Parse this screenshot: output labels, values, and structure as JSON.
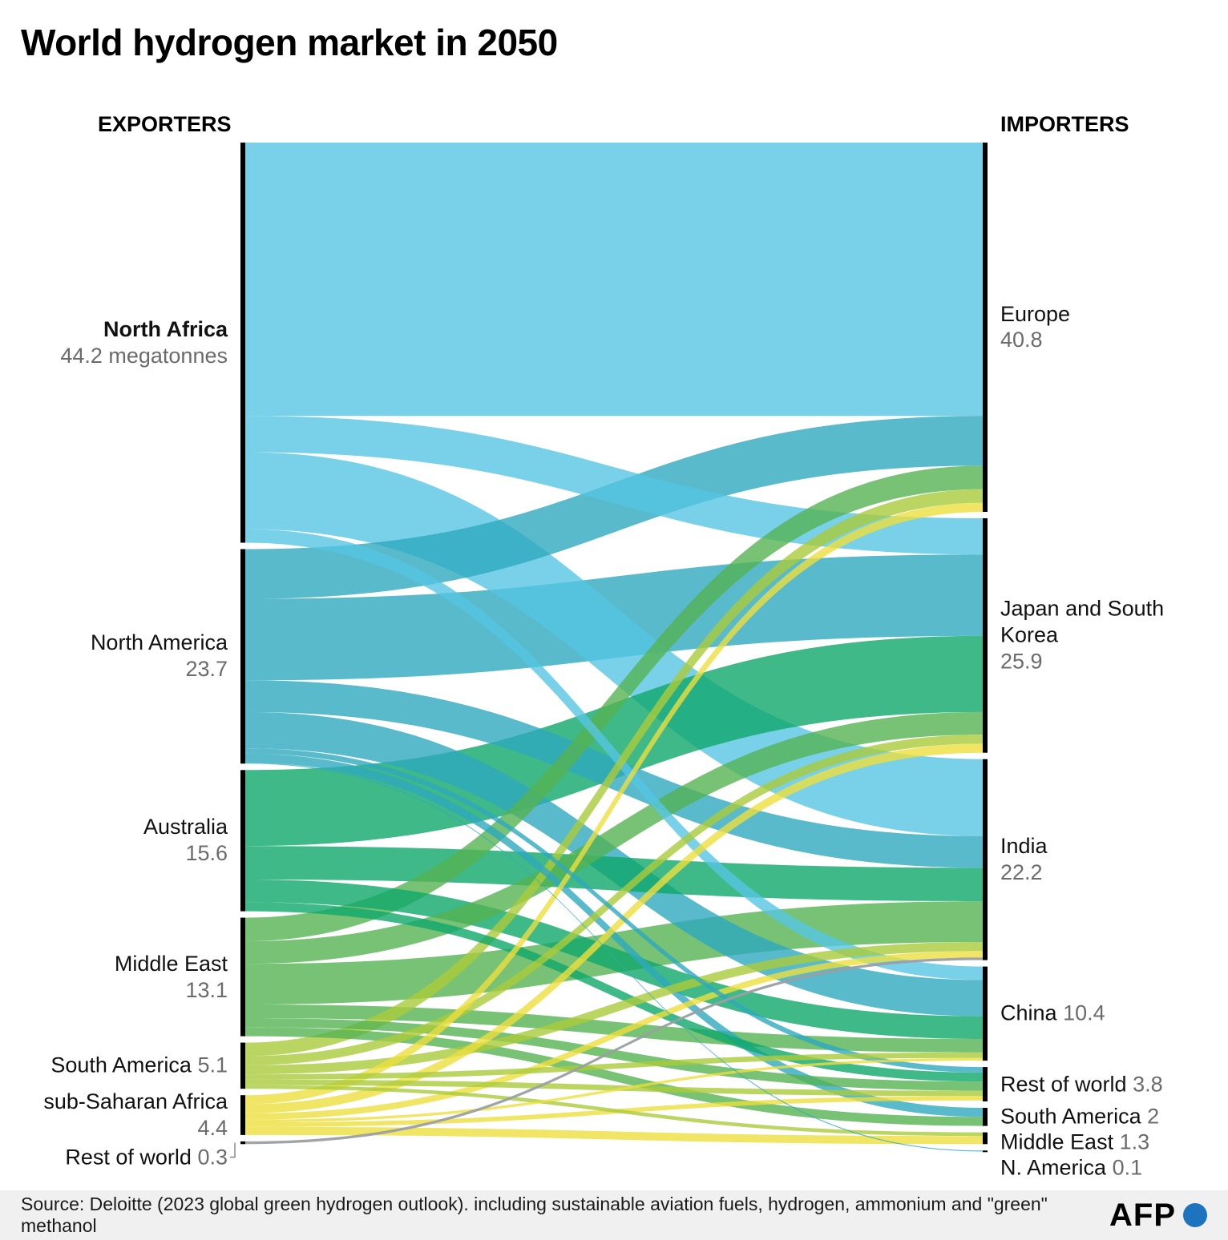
{
  "title": "World hydrogen market in 2050",
  "columns": {
    "left_header": "EXPORTERS",
    "right_header": "IMPORTERS"
  },
  "source": "Source: Deloitte (2023 global green hydrogen outlook). including sustainable aviation fuels, hydrogen, ammonium and \"green\" methanol",
  "logo": {
    "text": "AFP",
    "dot_color": "#1e73be"
  },
  "chart_data": {
    "type": "sankey",
    "unit": "megatonnes",
    "title": "World hydrogen market in 2050",
    "left_header": "EXPORTERS",
    "right_header": "IMPORTERS",
    "exporters": [
      {
        "id": "north-africa",
        "label": "North Africa",
        "value": 44.2,
        "value_label": "44.2 megatonnes",
        "color": "#56c5e2",
        "bold": true,
        "style": "stacked"
      },
      {
        "id": "north-america",
        "label": "North America",
        "value": 23.7,
        "value_label": "23.7",
        "color": "#2ea9be",
        "style": "stacked"
      },
      {
        "id": "australia",
        "label": "Australia",
        "value": 15.6,
        "value_label": "15.6",
        "color": "#0fa76a",
        "style": "stacked"
      },
      {
        "id": "middle-east",
        "label": "Middle East",
        "value": 13.1,
        "value_label": "13.1",
        "color": "#55b353",
        "style": "stacked"
      },
      {
        "id": "south-america",
        "label": "South America",
        "value": 5.1,
        "value_label": "5.1",
        "color": "#aacb3b",
        "style": "inline"
      },
      {
        "id": "sub-saharan-africa",
        "label": "sub-Saharan Africa",
        "value": 4.4,
        "value_label": "4.4",
        "color": "#ecdf3d",
        "style": "stacked"
      },
      {
        "id": "rest-of-world-exp",
        "label": "Rest of world",
        "value": 0.3,
        "value_label": "0.3",
        "color": "#9b9fa2",
        "style": "inline",
        "connector": true
      }
    ],
    "importers": [
      {
        "id": "europe",
        "label": "Europe",
        "value": 40.8,
        "value_label": "40.8",
        "style": "stacked"
      },
      {
        "id": "japan-south-korea",
        "label": "Japan and South Korea",
        "value": 25.9,
        "value_label": "25.9",
        "style": "stacked"
      },
      {
        "id": "india",
        "label": "India",
        "value": 22.2,
        "value_label": "22.2",
        "style": "stacked"
      },
      {
        "id": "china",
        "label": "China",
        "value": 10.4,
        "value_label": "10.4",
        "style": "inline"
      },
      {
        "id": "rest-of-world-imp",
        "label": "Rest of world",
        "value": 3.8,
        "value_label": "3.8",
        "style": "inline"
      },
      {
        "id": "south-america-imp",
        "label": "South America",
        "value": 2,
        "value_label": "2",
        "style": "inline"
      },
      {
        "id": "middle-east-imp",
        "label": "Middle East",
        "value": 1.3,
        "value_label": "1.3",
        "style": "inline"
      },
      {
        "id": "n-america-imp",
        "label": "N. America",
        "value": 0.1,
        "value_label": "0.1",
        "style": "inline"
      }
    ],
    "flows": [
      [
        0,
        0,
        30.2
      ],
      [
        0,
        1,
        4.0
      ],
      [
        0,
        2,
        8.5
      ],
      [
        0,
        3,
        1.5
      ],
      [
        1,
        0,
        5.5
      ],
      [
        1,
        1,
        9.0
      ],
      [
        1,
        2,
        3.5
      ],
      [
        1,
        3,
        4.0
      ],
      [
        1,
        4,
        0.6
      ],
      [
        1,
        5,
        1.0
      ],
      [
        1,
        7,
        0.1
      ],
      [
        2,
        1,
        8.4
      ],
      [
        2,
        2,
        3.7
      ],
      [
        2,
        3,
        2.5
      ],
      [
        2,
        4,
        1.0
      ],
      [
        3,
        0,
        2.6
      ],
      [
        3,
        1,
        2.5
      ],
      [
        3,
        2,
        4.5
      ],
      [
        3,
        3,
        1.5
      ],
      [
        3,
        4,
        1.0
      ],
      [
        3,
        5,
        1.0
      ],
      [
        4,
        0,
        1.5
      ],
      [
        4,
        1,
        1.0
      ],
      [
        4,
        2,
        1.0
      ],
      [
        4,
        3,
        0.6
      ],
      [
        4,
        4,
        0.6
      ],
      [
        4,
        6,
        0.4
      ],
      [
        5,
        0,
        1.0
      ],
      [
        5,
        1,
        1.0
      ],
      [
        5,
        2,
        0.7
      ],
      [
        5,
        3,
        0.3
      ],
      [
        5,
        4,
        0.5
      ],
      [
        5,
        6,
        0.9
      ],
      [
        6,
        2,
        0.3
      ]
    ]
  }
}
